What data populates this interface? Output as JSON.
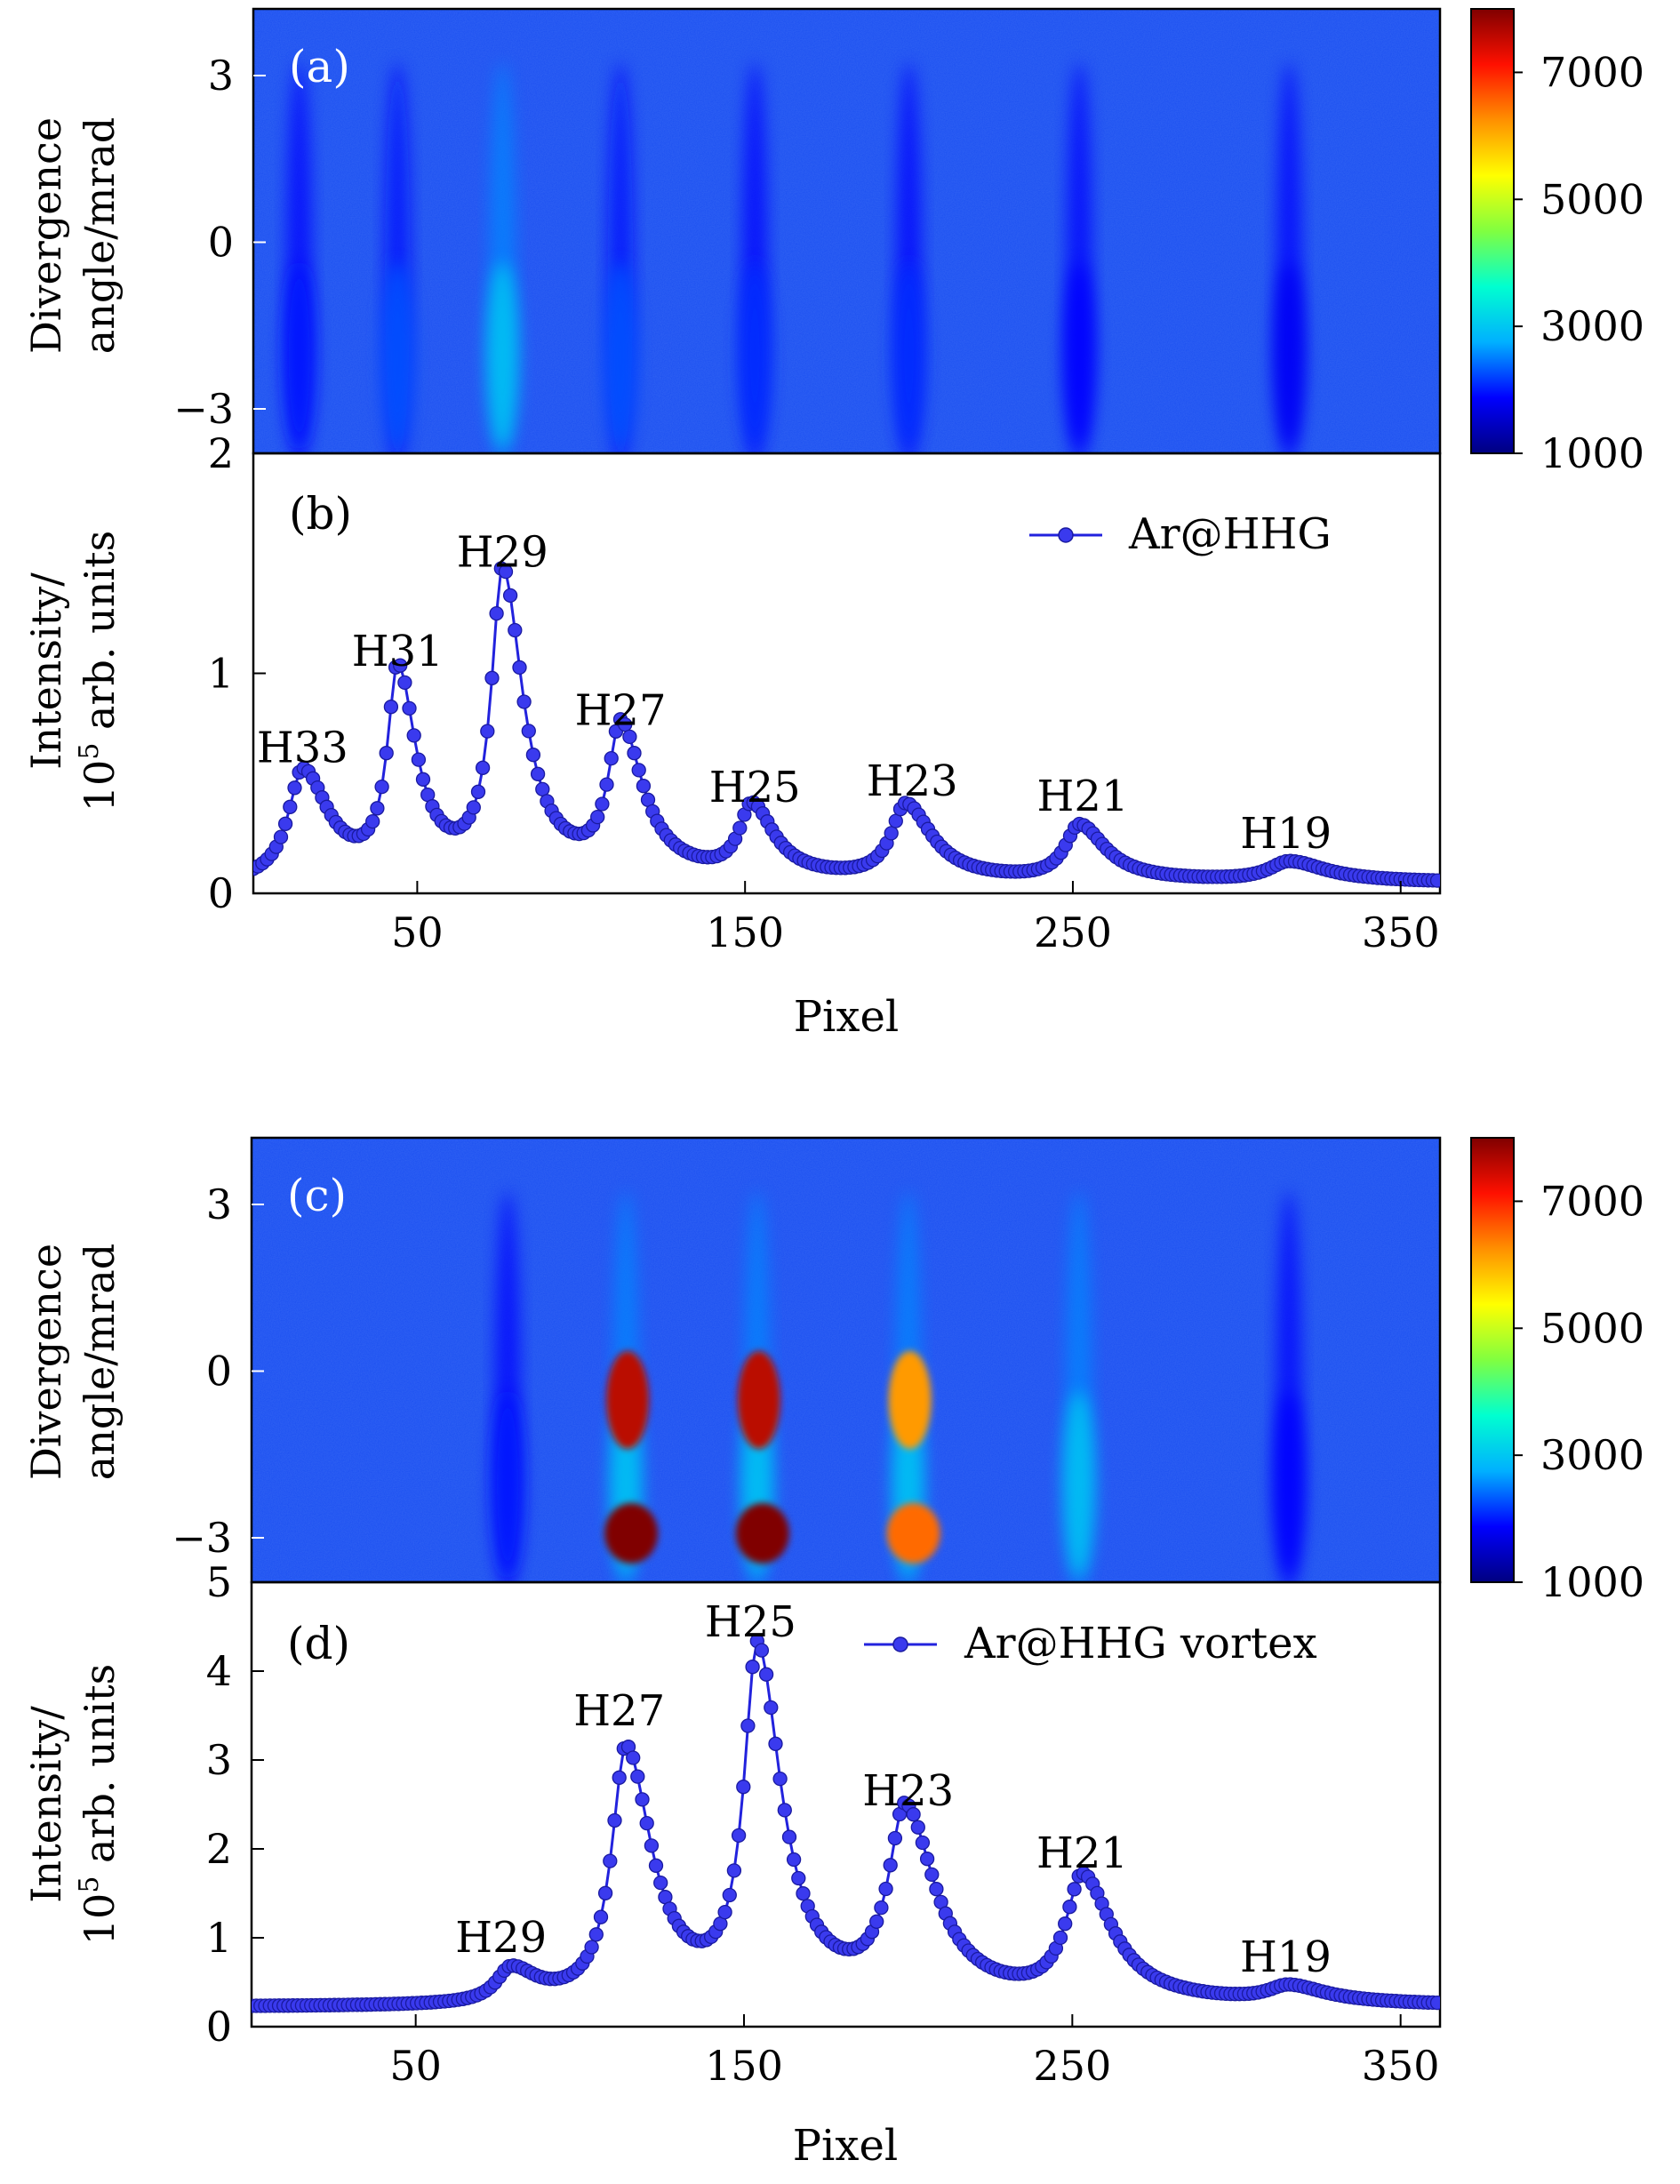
{
  "colorbar": {
    "ticks": [
      "7000",
      "5000",
      "3000",
      "1000"
    ],
    "colors": [
      "#000080",
      "#0000ff",
      "#00b0ff",
      "#00ffd0",
      "#80ff40",
      "#ffff00",
      "#ff9000",
      "#ff1000",
      "#800000"
    ]
  },
  "chart_data": [
    {
      "type": "heatmap",
      "panel_label": "(a)",
      "ylabel_line1": "Divergence",
      "ylabel_line2": "angle/mrad",
      "yticks": [
        "3",
        "0",
        "−3"
      ],
      "ylim": [
        -3.8,
        4.2
      ],
      "background_color": "#1a4ef0",
      "color_range": [
        1000,
        8000
      ],
      "harmonic_stripes": [
        {
          "pixel": 14,
          "peak_value": 2000
        },
        {
          "pixel": 44,
          "peak_value": 2300
        },
        {
          "pixel": 76,
          "peak_value": 3000
        },
        {
          "pixel": 112,
          "peak_value": 2300
        },
        {
          "pixel": 153,
          "peak_value": 2100
        },
        {
          "pixel": 200,
          "peak_value": 2100
        },
        {
          "pixel": 252,
          "peak_value": 1900
        },
        {
          "pixel": 316,
          "peak_value": 1800
        }
      ]
    },
    {
      "type": "line",
      "panel_label": "(b)",
      "ylabel_line1": "Intensity/",
      "ylabel_line2_base": "10",
      "ylabel_line2_sup": "5",
      "ylabel_line2_rest": " arb. units",
      "xlabel": "Pixel",
      "xticks": [
        "50",
        "150",
        "250",
        "350"
      ],
      "yticks": [
        "0",
        "1",
        "2"
      ],
      "xlim": [
        0,
        362
      ],
      "ylim": [
        0,
        2
      ],
      "series": [
        {
          "name": "Ar@HHG",
          "color": "#2222dd"
        }
      ],
      "baseline": 0.045,
      "peaks": [
        {
          "label": "H33",
          "x": 15,
          "height": 0.5,
          "width": 7
        },
        {
          "label": "H31",
          "x": 44,
          "height": 0.93,
          "width": 5
        },
        {
          "label": "H29",
          "x": 76,
          "height": 1.38,
          "width": 5.5
        },
        {
          "label": "H27",
          "x": 112,
          "height": 0.67,
          "width": 6
        },
        {
          "label": "H25",
          "x": 152,
          "height": 0.32,
          "width": 6
        },
        {
          "label": "H23",
          "x": 199,
          "height": 0.34,
          "width": 7
        },
        {
          "label": "H21",
          "x": 252,
          "height": 0.25,
          "width": 7
        },
        {
          "label": "H19",
          "x": 316,
          "height": 0.09,
          "width": 10
        }
      ],
      "labels": [
        {
          "text": "H33",
          "x": 15,
          "y": 0.66
        },
        {
          "text": "H31",
          "x": 44,
          "y": 1.1
        },
        {
          "text": "H29",
          "x": 76,
          "y": 1.55
        },
        {
          "text": "H27",
          "x": 112,
          "y": 0.83
        },
        {
          "text": "H25",
          "x": 153,
          "y": 0.48
        },
        {
          "text": "H23",
          "x": 201,
          "y": 0.51
        },
        {
          "text": "H21",
          "x": 253,
          "y": 0.44
        },
        {
          "text": "H19",
          "x": 315,
          "y": 0.27
        }
      ]
    },
    {
      "type": "heatmap",
      "panel_label": "(c)",
      "ylabel_line1": "Divergence",
      "ylabel_line2": "angle/mrad",
      "yticks": [
        "3",
        "0",
        "−3"
      ],
      "ylim": [
        -3.8,
        4.2
      ],
      "background_color": "#1a4ef0",
      "color_range": [
        1000,
        8000
      ],
      "harmonic_stripes": [
        {
          "pixel": 78,
          "peak_value": 2000
        },
        {
          "pixel": 114,
          "peak_value": 8000
        },
        {
          "pixel": 154,
          "peak_value": 8000
        },
        {
          "pixel": 200,
          "peak_value": 6500
        },
        {
          "pixel": 252,
          "peak_value": 3000
        },
        {
          "pixel": 316,
          "peak_value": 1900
        }
      ]
    },
    {
      "type": "line",
      "panel_label": "(d)",
      "ylabel_line1": "Intensity/",
      "ylabel_line2_base": "10",
      "ylabel_line2_sup": "5",
      "ylabel_line2_rest": " arb. units",
      "xlabel": "Pixel",
      "xticks": [
        "50",
        "150",
        "250",
        "350"
      ],
      "yticks": [
        "0",
        "1",
        "2",
        "3",
        "4",
        "5"
      ],
      "xlim": [
        0,
        362
      ],
      "ylim": [
        0,
        5
      ],
      "series": [
        {
          "name": "Ar@HHG vortex",
          "color": "#2222dd"
        }
      ],
      "baseline": 0.22,
      "peaks": [
        {
          "label": "H29",
          "x": 79,
          "height": 0.38,
          "width": 7
        },
        {
          "label": "H27",
          "x": 114,
          "height": 2.85,
          "width": 7
        },
        {
          "label": "H25",
          "x": 154,
          "height": 3.92,
          "width": 6.5
        },
        {
          "label": "H23",
          "x": 199,
          "height": 2.1,
          "width": 8
        },
        {
          "label": "H21",
          "x": 253,
          "height": 1.38,
          "width": 8
        },
        {
          "label": "H19",
          "x": 316,
          "height": 0.18,
          "width": 10
        }
      ],
      "labels": [
        {
          "text": "H29",
          "x": 76,
          "y": 1.0
        },
        {
          "text": "H27",
          "x": 112,
          "y": 3.55
        },
        {
          "text": "H25",
          "x": 152,
          "y": 4.55
        },
        {
          "text": "H23",
          "x": 200,
          "y": 2.65
        },
        {
          "text": "H21",
          "x": 253,
          "y": 1.95
        },
        {
          "text": "H19",
          "x": 315,
          "y": 0.78
        }
      ]
    }
  ]
}
